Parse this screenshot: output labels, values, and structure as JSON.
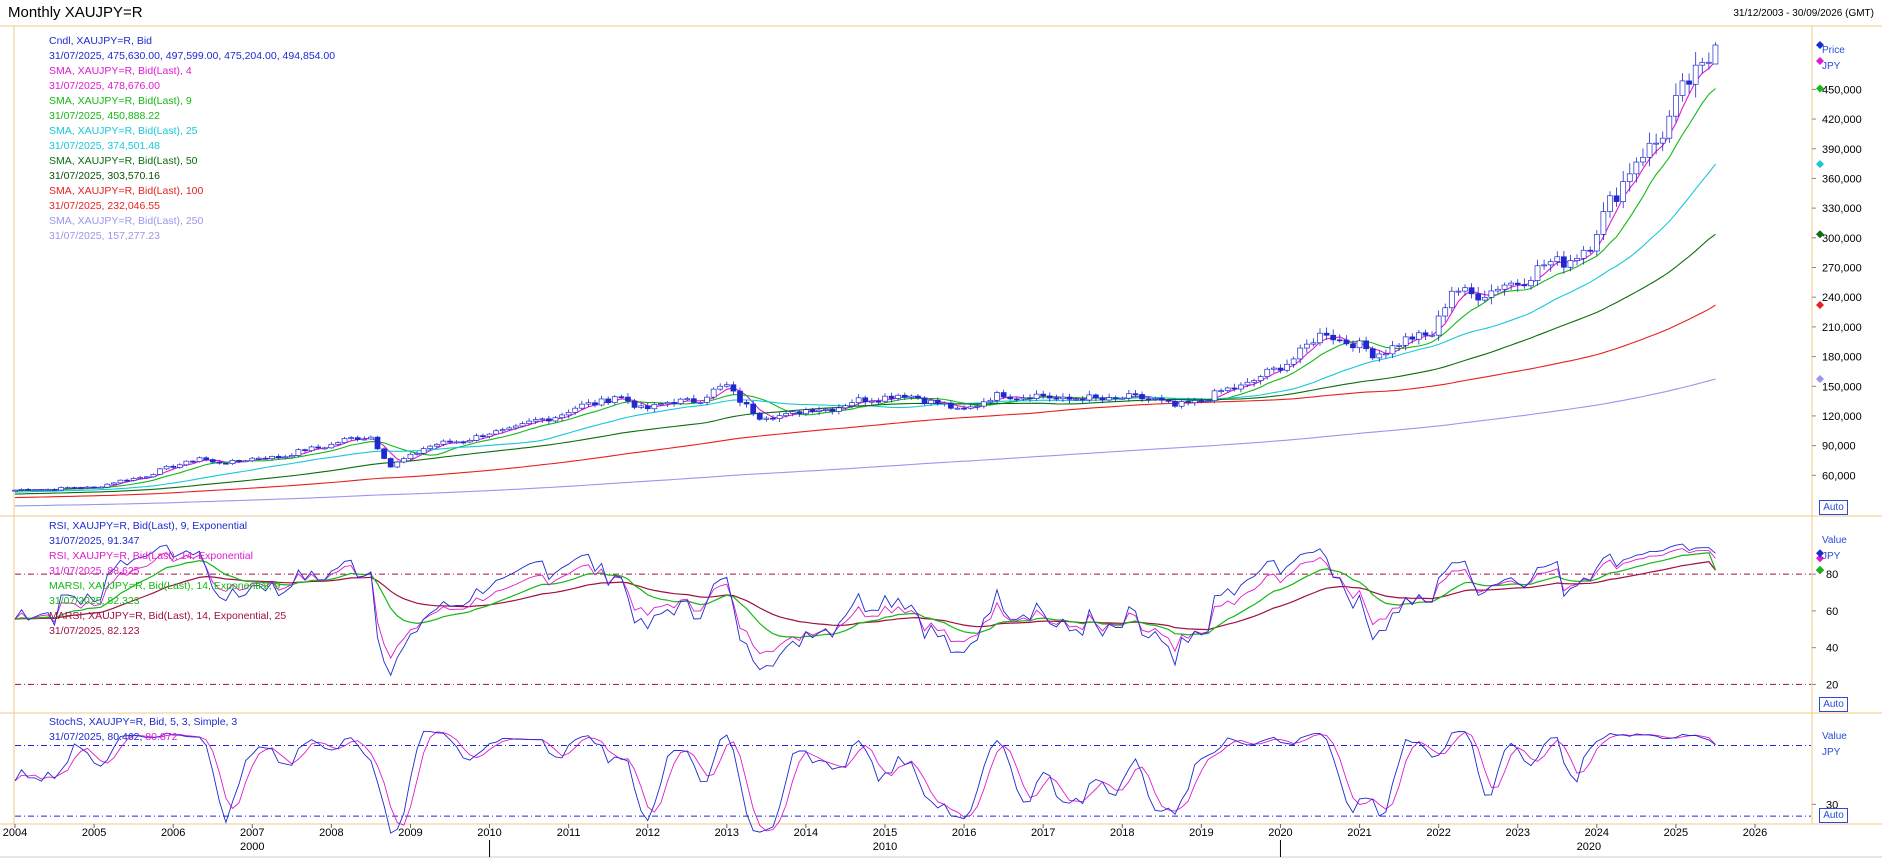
{
  "window": {
    "title": "Monthly XAUJPY=R",
    "date_range": "31/12/2003 - 30/09/2026 (GMT)"
  },
  "price_panel": {
    "legend": [
      {
        "label": "Cndl, XAUJPY=R, Bid",
        "value": "31/07/2025, 475,630.00, 497,599.00, 475,204.00, 494,854.00",
        "color": "#1e2ad0"
      },
      {
        "label": "SMA, XAUJPY=R, Bid(Last),  4",
        "value": "31/07/2025, 478,676.00",
        "color": "#e01ad0"
      },
      {
        "label": "SMA, XAUJPY=R, Bid(Last),  9",
        "value": "31/07/2025, 450,888.22",
        "color": "#14b814"
      },
      {
        "label": "SMA, XAUJPY=R, Bid(Last),  25",
        "value": "31/07/2025, 374,501.48",
        "color": "#18c8d8"
      },
      {
        "label": "SMA, XAUJPY=R, Bid(Last),  50",
        "value": "31/07/2025, 303,570.16",
        "color": "#0b6e0b"
      },
      {
        "label": "SMA, XAUJPY=R, Bid(Last),  100",
        "value": "31/07/2025, 232,046.55",
        "color": "#e82020"
      },
      {
        "label": "SMA, XAUJPY=R, Bid(Last),  250",
        "value": "31/07/2025, 157,277.23",
        "color": "#9a96ee"
      }
    ],
    "axis_title": "Price",
    "unit": "JPY",
    "auto_label": "Auto"
  },
  "rsi_panel": {
    "legend": [
      {
        "label": "RSI, XAUJPY=R, Bid(Last),  9, Exponential",
        "value": "31/07/2025, 91.347",
        "color": "#1e2ad0"
      },
      {
        "label": "RSI, XAUJPY=R, Bid(Last),  14, Exponential",
        "value": "31/07/2025, 88.625",
        "color": "#e01ad0"
      },
      {
        "label": "MARSI, XAUJPY=R, Bid(Last),  14, Exponential, 9",
        "value": "31/07/2025, 82.323",
        "color": "#14b814"
      },
      {
        "label": "MARSI, XAUJPY=R, Bid(Last),  14, Exponential, 25",
        "value": "31/07/2025, 82.123",
        "color": "#a01040"
      }
    ],
    "axis_title": "Value",
    "unit": "JPY",
    "auto_label": "Auto"
  },
  "stoch_panel": {
    "legend_label": "StochS, XAUJPY=R, Bid,  5, 3, Simple, 3",
    "legend_value_a": "31/07/2025, 80.462,",
    "legend_value_b": "80.872",
    "axis_title": "Value",
    "unit": "JPY",
    "auto_label": "Auto"
  },
  "chart_data": [
    {
      "type": "candlestick",
      "title": "Monthly XAUJPY=R",
      "period_start": "2004-01",
      "period_end": "2025-07",
      "ylim": [
        30000,
        510000
      ],
      "y_ticks": [
        60000,
        90000,
        120000,
        150000,
        180000,
        210000,
        240000,
        270000,
        300000,
        330000,
        360000,
        390000,
        420000,
        450000
      ],
      "y_tick_labels": [
        "60,000",
        "90,000",
        "120,000",
        "150,000",
        "180,000",
        "210,000",
        "240,000",
        "270,000",
        "300,000",
        "330,000",
        "360,000",
        "390,000",
        "420,000",
        "450,000"
      ],
      "x_tick_labels": [
        "2004",
        "2005",
        "2006",
        "2007",
        "2008",
        "2009",
        "2010",
        "2011",
        "2012",
        "2013",
        "2014",
        "2015",
        "2016",
        "2017",
        "2018",
        "2019",
        "2020",
        "2021",
        "2022",
        "2023",
        "2024",
        "2025",
        "2026"
      ],
      "decade_labels": [
        "2000",
        "2010",
        "2020"
      ],
      "close_anchors": [
        [
          "2004-01",
          45000
        ],
        [
          "2005-01",
          48000
        ],
        [
          "2005-09",
          60000
        ],
        [
          "2006-05",
          78000
        ],
        [
          "2006-07",
          72000
        ],
        [
          "2007-06",
          80000
        ],
        [
          "2008-03",
          95000
        ],
        [
          "2008-07",
          100000
        ],
        [
          "2008-10",
          68000
        ],
        [
          "2009-03",
          88000
        ],
        [
          "2009-12",
          100000
        ],
        [
          "2010-06",
          110000
        ],
        [
          "2011-08",
          140000
        ],
        [
          "2011-12",
          128000
        ],
        [
          "2012-09",
          138000
        ],
        [
          "2013-01",
          150000
        ],
        [
          "2013-06",
          118000
        ],
        [
          "2014-06",
          130000
        ],
        [
          "2014-12",
          140000
        ],
        [
          "2015-06",
          140000
        ],
        [
          "2015-12",
          125000
        ],
        [
          "2016-07",
          142000
        ],
        [
          "2017-06",
          137000
        ],
        [
          "2018-06",
          138000
        ],
        [
          "2018-09",
          128000
        ],
        [
          "2019-06",
          148000
        ],
        [
          "2019-12",
          165000
        ],
        [
          "2020-08",
          205000
        ],
        [
          "2021-03",
          183000
        ],
        [
          "2021-12",
          205000
        ],
        [
          "2022-03",
          245000
        ],
        [
          "2022-09",
          245000
        ],
        [
          "2023-05",
          270000
        ],
        [
          "2023-12",
          290000
        ],
        [
          "2024-03",
          340000
        ],
        [
          "2024-07",
          375000
        ],
        [
          "2024-10",
          400000
        ],
        [
          "2025-04",
          465000
        ],
        [
          "2025-07",
          494854
        ]
      ],
      "last_values": {
        "open": 475630,
        "high": 497599,
        "low": 475204,
        "close": 494854
      },
      "series": [
        {
          "name": "SMA 4",
          "period": 4,
          "last": 478676,
          "color": "#e01ad0"
        },
        {
          "name": "SMA 9",
          "period": 9,
          "last": 450888.22,
          "color": "#14b814"
        },
        {
          "name": "SMA 25",
          "period": 25,
          "last": 374501.48,
          "color": "#18c8d8"
        },
        {
          "name": "SMA 50",
          "period": 50,
          "last": 303570.16,
          "color": "#0b6e0b"
        },
        {
          "name": "SMA 100",
          "period": 100,
          "last": 232046.55,
          "color": "#e82020"
        },
        {
          "name": "SMA 250",
          "period": 250,
          "last": 157277.23,
          "color": "#9a96ee"
        }
      ]
    },
    {
      "type": "line",
      "ylim": [
        5,
        110
      ],
      "y_ticks": [
        20,
        40,
        60,
        80
      ],
      "reference_lines": [
        20,
        80
      ],
      "series": [
        {
          "name": "RSI 9",
          "last": 91.347,
          "color": "#1e2ad0"
        },
        {
          "name": "RSI 14",
          "last": 88.625,
          "color": "#e01ad0"
        },
        {
          "name": "MARSI 9",
          "last": 82.323,
          "color": "#14b814"
        },
        {
          "name": "MARSI 25",
          "last": 82.123,
          "color": "#a01040"
        }
      ]
    },
    {
      "type": "line",
      "ylim": [
        15,
        105
      ],
      "y_ticks": [
        30
      ],
      "reference_lines": [
        20,
        80
      ],
      "series": [
        {
          "name": "StochS %K",
          "last": 80.462,
          "color": "#1e2ad0"
        },
        {
          "name": "StochS %D",
          "last": 80.872,
          "color": "#e01ad0"
        }
      ]
    }
  ]
}
